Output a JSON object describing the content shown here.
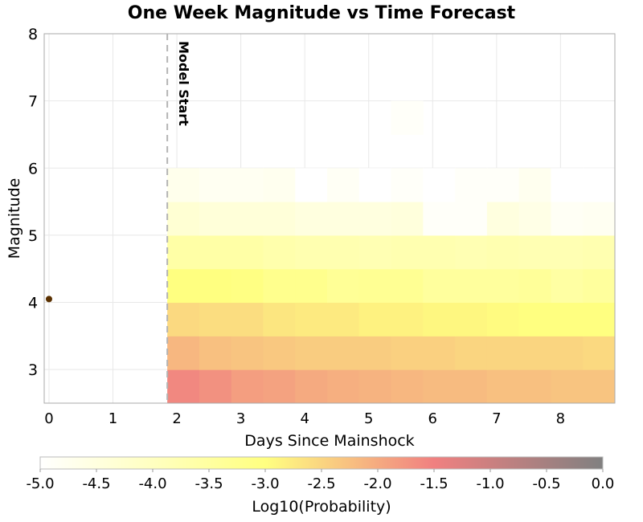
{
  "chart_data": {
    "type": "heatmap",
    "title": "One Week Magnitude vs Time Forecast",
    "xlabel": "Days Since Mainshock",
    "ylabel": "Magnitude",
    "xlim": [
      -0.075,
      8.85
    ],
    "ylim": [
      2.5,
      8
    ],
    "x_ticks": [
      "0",
      "1",
      "2",
      "3",
      "4",
      "5",
      "6",
      "7",
      "8"
    ],
    "y_ticks": [
      "3",
      "4",
      "5",
      "6",
      "7",
      "8"
    ],
    "grid": true,
    "annotation": {
      "label": "Model Start",
      "x": 1.85,
      "line_color": "#b4b4b4"
    },
    "mainshock_point": {
      "x": 0,
      "y": 4.05,
      "color": "#5a3000"
    },
    "bin_days": [
      1.85,
      2.35,
      2.85,
      3.35,
      3.85,
      4.35,
      4.85,
      5.35,
      5.85,
      6.35,
      6.85,
      7.35,
      7.85,
      8.35,
      8.85
    ],
    "bin_magnitudes": [
      2.5,
      3.0,
      3.5,
      4.0,
      4.5,
      5.0,
      5.5,
      6.0,
      6.5,
      7.0
    ],
    "values": [
      [
        -1.6,
        -1.7,
        -1.85,
        -1.9,
        -2.0,
        -2.05,
        -2.1,
        -2.15,
        -2.2,
        -2.2,
        -2.25,
        -2.25,
        -2.3,
        -2.3
      ],
      [
        -2.15,
        -2.25,
        -2.3,
        -2.35,
        -2.4,
        -2.4,
        -2.4,
        -2.45,
        -2.45,
        -2.5,
        -2.5,
        -2.5,
        -2.5,
        -2.55
      ],
      [
        -2.55,
        -2.6,
        -2.6,
        -2.7,
        -2.75,
        -2.75,
        -2.85,
        -2.85,
        -2.9,
        -2.9,
        -2.95,
        -3.0,
        -3.0,
        -3.0
      ],
      [
        -3.0,
        -3.0,
        -3.05,
        -3.2,
        -3.2,
        -3.35,
        -3.3,
        -3.3,
        -3.45,
        -3.45,
        -3.45,
        -3.4,
        -3.55,
        -3.45
      ],
      [
        -3.6,
        -3.6,
        -3.6,
        -3.7,
        -3.75,
        -3.75,
        -3.8,
        -3.75,
        -3.75,
        -3.8,
        -3.75,
        -3.8,
        -3.8,
        -3.75
      ],
      [
        -4.3,
        -4.4,
        -4.4,
        -4.4,
        -4.5,
        -4.5,
        -4.5,
        -4.45,
        -4.9,
        -4.9,
        -4.5,
        -4.6,
        -4.85,
        -4.8
      ],
      [
        -4.7,
        -4.8,
        -4.8,
        -4.75,
        -5.0,
        -4.85,
        -5.0,
        -4.9,
        -5.0,
        -4.9,
        -4.9,
        -4.75,
        -5.0,
        -5.0
      ],
      [
        null,
        null,
        null,
        null,
        null,
        null,
        null,
        null,
        null,
        null,
        null,
        null,
        null,
        null
      ],
      [
        null,
        null,
        null,
        null,
        null,
        null,
        null,
        -4.9,
        null,
        null,
        null,
        null,
        null,
        null
      ]
    ],
    "colorbar": {
      "label": "Log10(Probability)",
      "range": [
        -5.0,
        0.0
      ],
      "ticks": [
        "-5.0",
        "-4.5",
        "-4.0",
        "-3.5",
        "-3.0",
        "-2.5",
        "-2.0",
        "-1.5",
        "-1.0",
        "-0.5",
        "0.0"
      ],
      "stops": [
        {
          "value": -5.0,
          "color": "#ffffff"
        },
        {
          "value": -3.0,
          "color": "#ffff80"
        },
        {
          "value": -1.5,
          "color": "#f08080"
        },
        {
          "value": 0.0,
          "color": "#808080"
        }
      ]
    }
  }
}
